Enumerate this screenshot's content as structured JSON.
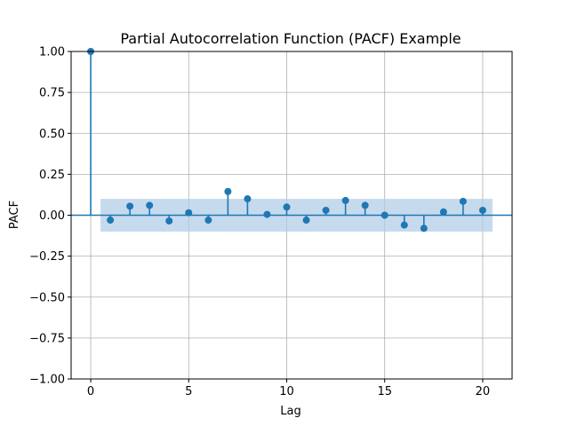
{
  "chart_data": {
    "type": "stem",
    "title": "Partial Autocorrelation Function (PACF) Example",
    "xlabel": "Lag",
    "ylabel": "PACF",
    "xlim": [
      -1,
      21.5
    ],
    "ylim": [
      -1.0,
      1.0
    ],
    "xticks": [
      0,
      5,
      10,
      15,
      20
    ],
    "yticks": [
      1.0,
      0.75,
      0.5,
      0.25,
      0.0,
      -0.25,
      -0.5,
      -0.75,
      -1.0
    ],
    "ytick_labels": [
      "1.00",
      "0.75",
      "0.50",
      "0.25",
      "0.00",
      "−0.25",
      "−0.50",
      "−0.75",
      "−1.00"
    ],
    "grid": true,
    "lags": [
      0,
      1,
      2,
      3,
      4,
      5,
      6,
      7,
      8,
      9,
      10,
      11,
      12,
      13,
      14,
      15,
      16,
      17,
      18,
      19,
      20
    ],
    "values": [
      1.0,
      -0.03,
      0.055,
      0.06,
      -0.035,
      0.015,
      -0.03,
      0.145,
      0.1,
      0.005,
      0.05,
      -0.03,
      0.03,
      0.09,
      0.06,
      0.0,
      -0.06,
      -0.08,
      0.02,
      0.085,
      0.03
    ],
    "confidence_band": {
      "lower": -0.1,
      "upper": 0.1,
      "x_start": 0.5,
      "x_end": 20.5
    },
    "colors": {
      "stem": "#1f77b4",
      "band": "#aecbe5",
      "grid": "#b0b0b0"
    }
  }
}
